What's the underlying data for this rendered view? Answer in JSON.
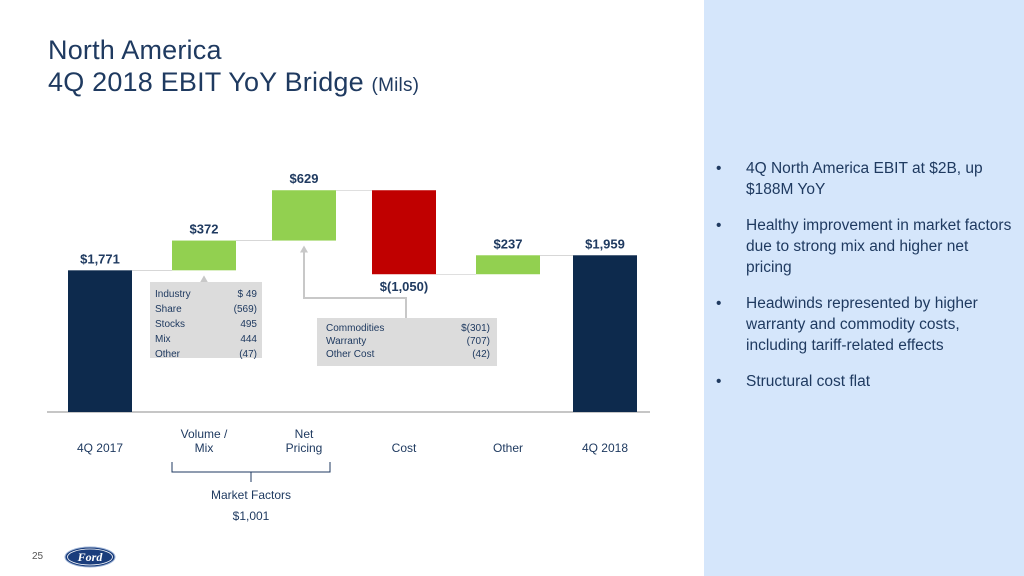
{
  "title": {
    "line1": "North America",
    "line2": "4Q 2018 EBIT YoY Bridge",
    "units": "(Mils)"
  },
  "chart_data": {
    "type": "bar",
    "subtype": "waterfall",
    "categories": [
      "4Q 2017",
      "Volume / Mix",
      "Net Pricing",
      "Cost",
      "Other",
      "4Q 2018"
    ],
    "category_lines": [
      [
        "4Q 2017"
      ],
      [
        "Volume /",
        "Mix"
      ],
      [
        "Net",
        "Pricing"
      ],
      [
        "Cost"
      ],
      [
        "Other"
      ],
      [
        "4Q 2018"
      ]
    ],
    "values": [
      1771,
      372,
      629,
      -1050,
      237,
      1959
    ],
    "bar_kinds": [
      "total",
      "increase",
      "increase",
      "decrease",
      "increase",
      "total"
    ],
    "value_labels": [
      "$1,771",
      "$372",
      "$629",
      "$(1,050)",
      "$237",
      "$1,959"
    ],
    "colors": {
      "total": "#0d2a4d",
      "increase": "#92d050",
      "decrease": "#c00000"
    },
    "ylim": [
      0,
      3000
    ],
    "callouts": [
      {
        "attached_to": "Volume / Mix",
        "rows": [
          {
            "label": "Industry",
            "value": "$   49"
          },
          {
            "label": "Share",
            "value": "(569)"
          },
          {
            "label": "Stocks",
            "value": "495"
          },
          {
            "label": "Mix",
            "value": "444"
          },
          {
            "label": "Other",
            "value": "(47)"
          }
        ]
      },
      {
        "attached_to": "Net Pricing",
        "rows": [
          {
            "label": "Commodities",
            "value": "$(301)"
          },
          {
            "label": "Warranty",
            "value": "(707)"
          },
          {
            "label": "Other Cost",
            "value": "(42)"
          }
        ]
      }
    ],
    "group_bracket": {
      "label": "Market Factors",
      "value": "$1,001",
      "spans": [
        "Volume / Mix",
        "Net Pricing"
      ]
    }
  },
  "bullets": [
    "4Q North America EBIT at $2B, up $188M YoY",
    "Healthy improvement in market factors due to strong mix and higher net pricing",
    "Headwinds represented by higher warranty and commodity costs, including tariff-related effects",
    "Structural cost flat"
  ],
  "bullet_glyph": "•",
  "footer": {
    "page_number": "25",
    "logo_text": "Ford"
  }
}
